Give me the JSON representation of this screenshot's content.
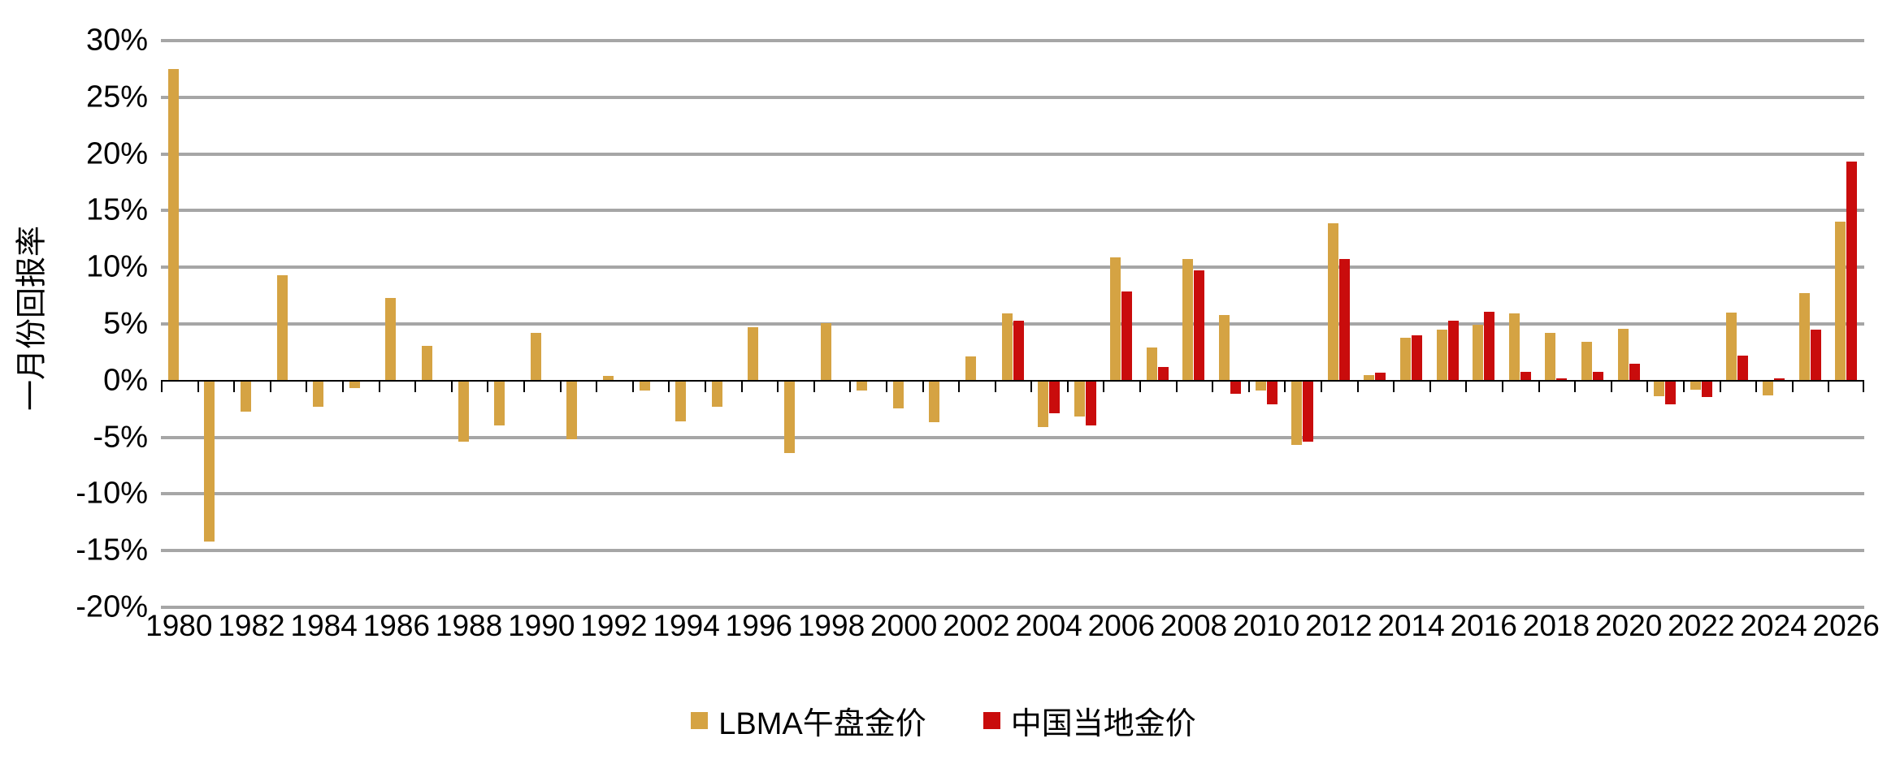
{
  "y_axis": {
    "title": "一月份回报率",
    "tick_labels": [
      "30%",
      "25%",
      "20%",
      "15%",
      "10%",
      "5%",
      "0%",
      "-5%",
      "-10%",
      "-15%",
      "-20%"
    ],
    "max": 30,
    "min": -20,
    "step": 5
  },
  "x_axis": {
    "tick_labels": [
      "1980",
      "1982",
      "1984",
      "1986",
      "1988",
      "1990",
      "1992",
      "1994",
      "1996",
      "1998",
      "2000",
      "2002",
      "2004",
      "2006",
      "2008",
      "2010",
      "2012",
      "2014",
      "2016",
      "2018",
      "2020",
      "2022",
      "2024",
      "2026"
    ]
  },
  "legend": {
    "items": [
      {
        "label": "LBMA午盘金价",
        "color": "#D5A343"
      },
      {
        "label": "中国当地金价",
        "color": "#C90C0C"
      }
    ]
  },
  "colors": {
    "background": "#FFFFFF",
    "gridline": "#A6A6A6",
    "axis": "#000000",
    "lbma": "#D5A343",
    "china": "#C90C0C"
  },
  "chart_data": {
    "type": "bar",
    "title": "",
    "xlabel": "",
    "ylabel": "一月份回报率",
    "ylim": [
      -20,
      30
    ],
    "grid": true,
    "legend_position": "bottom",
    "categories": [
      1980,
      1981,
      1982,
      1983,
      1984,
      1985,
      1986,
      1987,
      1988,
      1989,
      1990,
      1991,
      1992,
      1993,
      1994,
      1995,
      1996,
      1997,
      1998,
      1999,
      2000,
      2001,
      2002,
      2003,
      2004,
      2005,
      2006,
      2007,
      2008,
      2009,
      2010,
      2011,
      2012,
      2013,
      2014,
      2015,
      2016,
      2017,
      2018,
      2019,
      2020,
      2021,
      2022,
      2023,
      2024,
      2025,
      2026
    ],
    "series": [
      {
        "name": "LBMA午盘金价",
        "color": "#D5A343",
        "values": [
          27.5,
          -14.1,
          -2.7,
          9.3,
          -2.2,
          -0.6,
          7.3,
          3.1,
          -5.3,
          -3.9,
          4.2,
          -5.1,
          0.4,
          -0.8,
          -3.5,
          -2.2,
          4.7,
          -6.3,
          5.1,
          -0.8,
          -2.4,
          -3.6,
          2.1,
          5.9,
          -4.0,
          -3.1,
          10.9,
          2.9,
          10.7,
          5.8,
          -0.8,
          -5.6,
          13.9,
          0.5,
          3.8,
          4.5,
          4.9,
          5.9,
          4.2,
          3.4,
          4.6,
          -1.3,
          -0.7,
          6.0,
          -1.2,
          7.7,
          14.0
        ]
      },
      {
        "name": "中国当地金价",
        "color": "#C90C0C",
        "values": [
          null,
          null,
          null,
          null,
          null,
          null,
          null,
          null,
          null,
          null,
          null,
          null,
          null,
          null,
          null,
          null,
          null,
          null,
          null,
          null,
          null,
          null,
          null,
          5.3,
          -2.8,
          -3.9,
          7.9,
          1.2,
          9.7,
          -1.1,
          -2.0,
          -5.3,
          10.7,
          0.7,
          4.0,
          5.3,
          6.1,
          0.8,
          0.2,
          0.8,
          1.5,
          -2.0,
          -1.4,
          2.2,
          0.2,
          4.5,
          19.3
        ]
      }
    ]
  }
}
